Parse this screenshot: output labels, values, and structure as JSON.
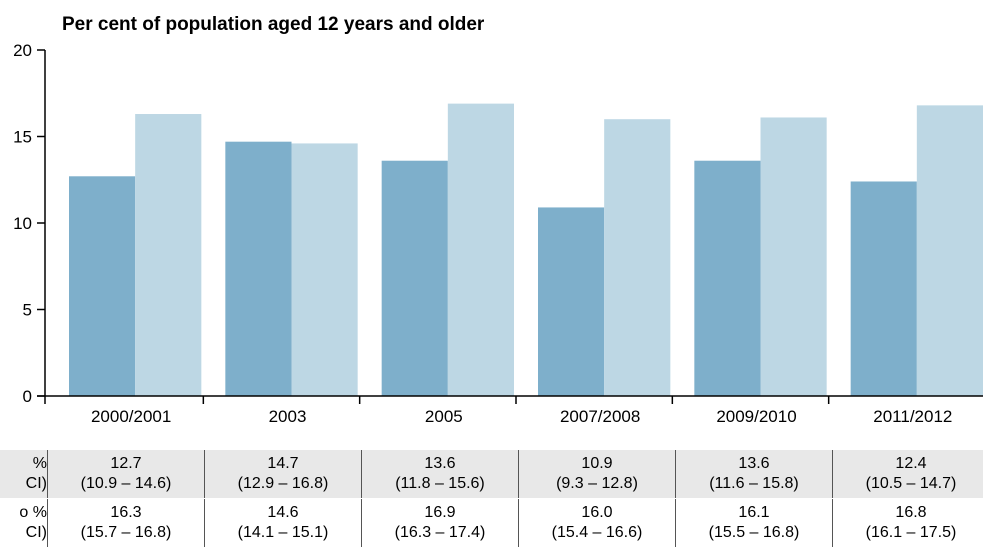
{
  "chart_data": {
    "type": "bar",
    "title": "Per cent of population aged 12 years and older",
    "xlabel": "",
    "ylabel": "",
    "ylim": [
      0,
      20
    ],
    "yticks": [
      0,
      5,
      10,
      15,
      20
    ],
    "categories": [
      "2000/2001",
      "2003",
      "2005",
      "2007/2008",
      "2009/2010",
      "2011/2012"
    ],
    "series": [
      {
        "color": "#7eafcb",
        "values": [
          12.7,
          14.7,
          13.6,
          10.9,
          13.6,
          12.4
        ]
      },
      {
        "color": "#bdd7e4",
        "values": [
          16.3,
          14.6,
          16.9,
          16.0,
          16.1,
          16.8
        ]
      }
    ],
    "grid": false,
    "legend": "none"
  },
  "table": {
    "rows": [
      {
        "label_line1": "%",
        "label_line2": "CI)",
        "cells": [
          {
            "value": "12.7",
            "ci": "(10.9 – 14.6)"
          },
          {
            "value": "14.7",
            "ci": "(12.9 – 16.8)"
          },
          {
            "value": "13.6",
            "ci": "(11.8 – 15.6)"
          },
          {
            "value": "10.9",
            "ci": "(9.3 – 12.8)"
          },
          {
            "value": "13.6",
            "ci": "(11.6 – 15.8)"
          },
          {
            "value": "12.4",
            "ci": "(10.5 – 14.7)"
          }
        ]
      },
      {
        "label_line1": "o %",
        "label_line2": "CI)",
        "cells": [
          {
            "value": "16.3",
            "ci": "(15.7 – 16.8)"
          },
          {
            "value": "14.6",
            "ci": "(14.1 – 15.1)"
          },
          {
            "value": "16.9",
            "ci": "(16.3 – 17.4)"
          },
          {
            "value": "16.0",
            "ci": "(15.4 – 16.6)"
          },
          {
            "value": "16.1",
            "ci": "(15.5 – 16.8)"
          },
          {
            "value": "16.8",
            "ci": "(16.1 – 17.5)"
          }
        ]
      }
    ]
  }
}
